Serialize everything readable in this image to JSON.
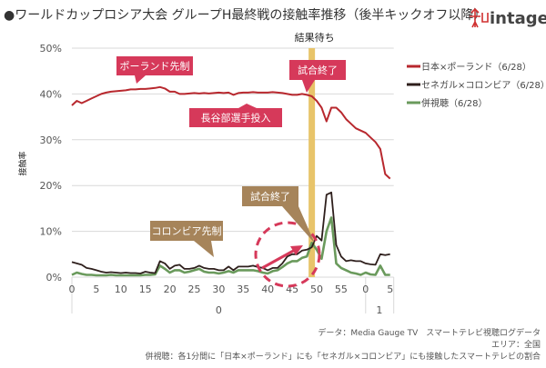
{
  "title": "●ワールドカップロシア大会 グループH最終戦の接触率推移（後半キックオフ以降）",
  "logo": {
    "text": "intage"
  },
  "colors": {
    "japan": "#b8282e",
    "senegal": "#2e1f1c",
    "both": "#6a9a5c",
    "callout_red": "#d6395a",
    "callout_brown": "#a6845a",
    "band": "#e8c46a",
    "dashed_circle": "#d6395a"
  },
  "chart_data": {
    "type": "line",
    "ylabel": "接触率",
    "ylim": [
      0,
      50
    ],
    "yticks": [
      "0%",
      "10%",
      "20%",
      "30%",
      "40%",
      "50%"
    ],
    "xtick_labels": [
      "0",
      "5",
      "10",
      "15",
      "20",
      "25",
      "30",
      "35",
      "40",
      "45",
      "50",
      "55",
      "0",
      "5"
    ],
    "xgroup_labels": [
      "0",
      "1"
    ],
    "grid": true,
    "legend_placement": "right",
    "x_minutes": [
      0,
      1,
      2,
      3,
      4,
      5,
      6,
      7,
      8,
      9,
      10,
      11,
      12,
      13,
      14,
      15,
      16,
      17,
      18,
      19,
      20,
      21,
      22,
      23,
      24,
      25,
      26,
      27,
      28,
      29,
      30,
      31,
      32,
      33,
      34,
      35,
      36,
      37,
      38,
      39,
      40,
      41,
      42,
      43,
      44,
      45,
      46,
      47,
      48,
      49,
      50,
      51,
      52,
      53,
      54,
      55,
      56,
      57,
      58,
      59,
      60,
      61,
      62,
      63,
      64,
      65
    ],
    "series": [
      {
        "name": "日本×ポーランド（6/28）",
        "values": [
          37.5,
          38.5,
          38,
          38.5,
          39,
          39.5,
          40,
          40.3,
          40.5,
          40.6,
          40.7,
          40.8,
          41,
          41,
          41.1,
          41.1,
          41.2,
          41.3,
          41.5,
          41.2,
          40.5,
          40.5,
          40,
          40,
          40.1,
          40.2,
          40.1,
          40.2,
          40.1,
          40.2,
          40.3,
          40.2,
          40.3,
          39.8,
          40.2,
          40.3,
          40.3,
          40.4,
          40.3,
          40.3,
          40.3,
          40.4,
          40.3,
          40.2,
          40,
          39.8,
          39.8,
          40,
          39.8,
          39.5,
          38.5,
          37,
          34,
          37,
          37,
          36,
          34.5,
          33.5,
          32.5,
          32,
          31.5,
          30.5,
          29.5,
          28,
          22.5,
          21.5
        ]
      },
      {
        "name": "セネガル×コロンビア（6/28）",
        "values": [
          3.3,
          3,
          2.7,
          2,
          1.8,
          1.5,
          1.2,
          1,
          1.1,
          1,
          0.9,
          1,
          0.9,
          0.9,
          0.8,
          1.2,
          1,
          0.9,
          3.5,
          3,
          1.8,
          2.5,
          2.7,
          1.8,
          1.8,
          2,
          2.5,
          2,
          1.8,
          1.8,
          1.5,
          1.5,
          2.3,
          1.5,
          2.3,
          2.3,
          2.3,
          2.5,
          2.2,
          2,
          1.5,
          2,
          2,
          3,
          4.5,
          5,
          5,
          5.8,
          6,
          6.5,
          9,
          8,
          18,
          18.5,
          7,
          4.5,
          3.5,
          3.7,
          3.5,
          3.5,
          3,
          2.8,
          2.7,
          5,
          4.8,
          5
        ]
      },
      {
        "name": "併視聴（6/28）",
        "values": [
          0.5,
          1,
          0.7,
          0.5,
          0.5,
          0.4,
          0.4,
          0.4,
          0.5,
          0.4,
          0.4,
          0.4,
          0.4,
          0.4,
          0.4,
          0.5,
          0.5,
          0.6,
          2.5,
          1.8,
          1,
          1.5,
          1.5,
          1,
          1.2,
          1.5,
          1.8,
          1.2,
          1,
          1,
          0.8,
          1,
          1.3,
          1,
          1.5,
          1.5,
          1.5,
          1.5,
          1.3,
          1,
          0.8,
          1.3,
          1.5,
          2.2,
          3,
          3.5,
          3.5,
          4.2,
          4.5,
          7.5,
          6,
          4,
          10,
          13,
          3,
          2,
          1.5,
          1,
          0.8,
          0.5,
          1,
          0.6,
          0.5,
          2.5,
          0.5,
          0.5
        ]
      }
    ],
    "annotations": {
      "band_label": "結果待ち",
      "band_minute": 49,
      "callouts": [
        {
          "text": "ポーランド先制",
          "style": "red"
        },
        {
          "text": "試合終了",
          "style": "red"
        },
        {
          "text": "長谷部選手投入",
          "style": "red"
        },
        {
          "text": "試合終了",
          "style": "brown"
        },
        {
          "text": "コロンビア先制",
          "style": "brown"
        }
      ]
    }
  },
  "notes": [
    "データ：Media Gauge TV　スマートテレビ視聴ログデータ",
    "エリア：全国",
    "併視聴：各1分間に「日本×ポーランド」にも「セネガル×コロンビア」にも接触したスマートテレビの割合"
  ]
}
